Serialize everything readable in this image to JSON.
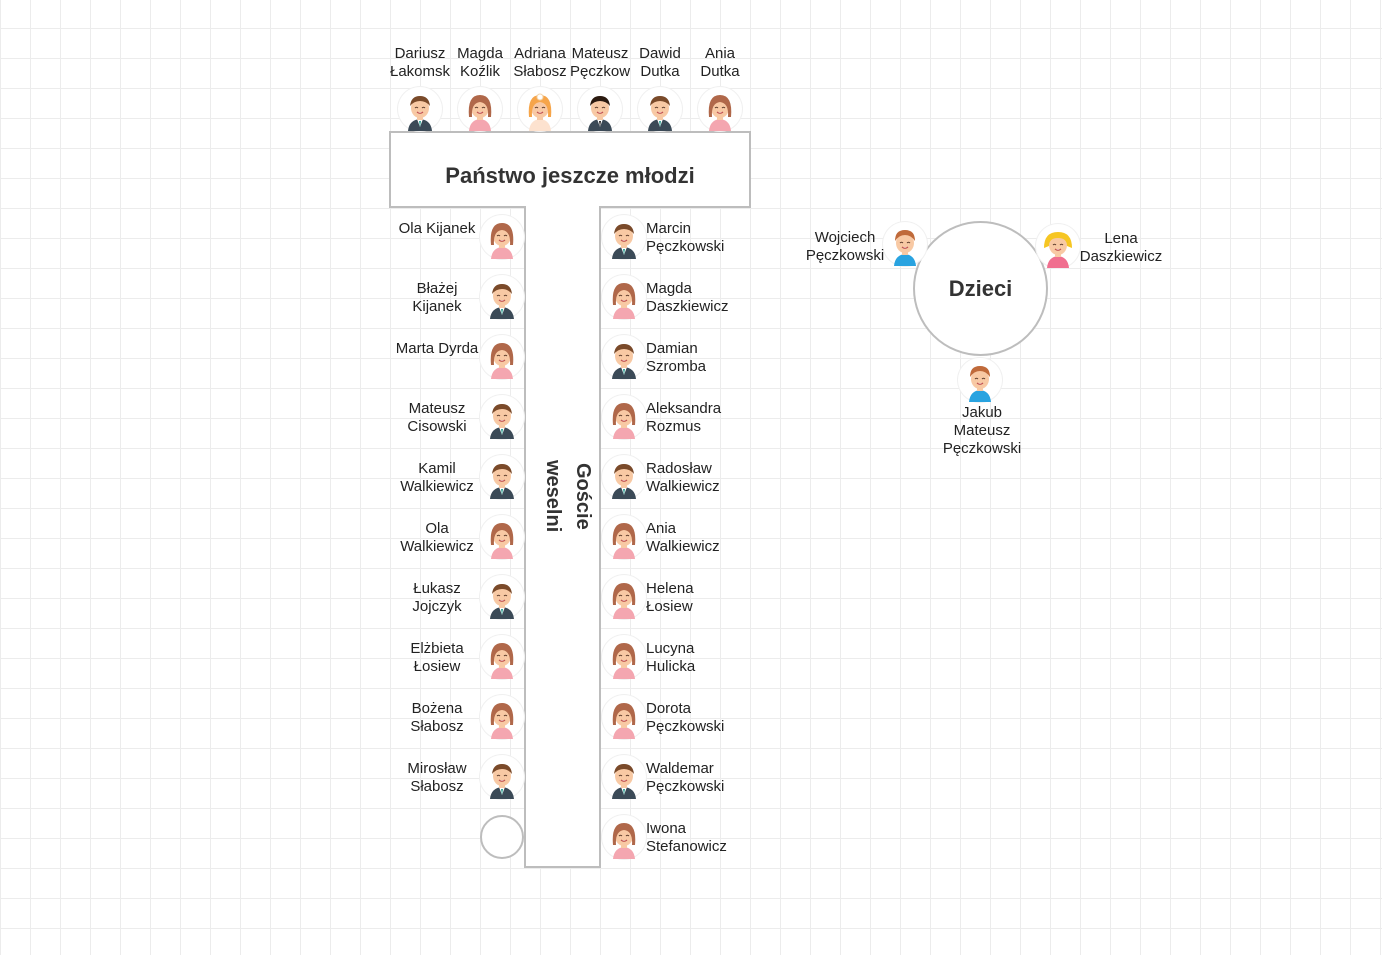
{
  "tables": {
    "head": {
      "label": "Państwo jeszcze młodzi"
    },
    "long": {
      "label": "Goście weselni"
    },
    "round": {
      "label": "Dzieci"
    }
  },
  "head_guests": [
    {
      "line1": "Dariusz",
      "line2": "Łakomski",
      "avatar": "man-suit"
    },
    {
      "line1": "Magda",
      "line2": "Koźlik",
      "avatar": "woman"
    },
    {
      "line1": "Adriana",
      "line2": "Słabosz",
      "avatar": "bride"
    },
    {
      "line1": "Mateusz",
      "line2": "Pęczkowski",
      "avatar": "groom"
    },
    {
      "line1": "Dawid",
      "line2": "Dutka",
      "avatar": "man-suit"
    },
    {
      "line1": "Ania",
      "line2": "Dutka",
      "avatar": "woman"
    }
  ],
  "left_guests": [
    {
      "line1": "Ola Kijanek",
      "line2": "",
      "avatar": "woman"
    },
    {
      "line1": "Błażej",
      "line2": "Kijanek",
      "avatar": "man-suit"
    },
    {
      "line1": "Marta Dyrda",
      "line2": "",
      "avatar": "woman"
    },
    {
      "line1": "Mateusz",
      "line2": "Cisowski",
      "avatar": "man-suit"
    },
    {
      "line1": "Kamil",
      "line2": "Walkiewicz",
      "avatar": "man-suit"
    },
    {
      "line1": "Ola",
      "line2": "Walkiewicz",
      "avatar": "woman"
    },
    {
      "line1": "Łukasz",
      "line2": "Jojczyk",
      "avatar": "man-suit"
    },
    {
      "line1": "Elżbieta",
      "line2": "Łosiew",
      "avatar": "woman"
    },
    {
      "line1": "Bożena",
      "line2": "Słabosz",
      "avatar": "woman"
    },
    {
      "line1": "Mirosław",
      "line2": "Słabosz",
      "avatar": "man-suit"
    }
  ],
  "right_guests": [
    {
      "line1": "Marcin",
      "line2": "Pęczkowski",
      "avatar": "man-suit"
    },
    {
      "line1": "Magda",
      "line2": "Daszkiewicz",
      "avatar": "woman"
    },
    {
      "line1": "Damian",
      "line2": "Szromba",
      "avatar": "man-suit"
    },
    {
      "line1": "Aleksandra",
      "line2": "Rozmus",
      "avatar": "woman"
    },
    {
      "line1": "Radosław",
      "line2": "Walkiewicz",
      "avatar": "man-suit"
    },
    {
      "line1": "Ania",
      "line2": "Walkiewicz",
      "avatar": "woman"
    },
    {
      "line1": "Helena",
      "line2": "Łosiew",
      "avatar": "woman"
    },
    {
      "line1": "Lucyna",
      "line2": "Hulicka",
      "avatar": "woman"
    },
    {
      "line1": "Dorota",
      "line2": "Pęczkowski",
      "avatar": "woman"
    },
    {
      "line1": "Waldemar",
      "line2": "Pęczkowski",
      "avatar": "man-suit"
    },
    {
      "line1": "Iwona",
      "line2": "Stefanowicz",
      "avatar": "woman"
    }
  ],
  "kids": [
    {
      "line1": "Wojciech",
      "line2": "Pęczkowski",
      "line3": "",
      "avatar": "boy"
    },
    {
      "line1": "Lena",
      "line2": "Daszkiewicz",
      "line3": "",
      "avatar": "girl"
    },
    {
      "line1": "Jakub",
      "line2": "Mateusz",
      "line3": "Pęczkowski",
      "avatar": "boy"
    }
  ],
  "colors": {
    "skin": "#f8c9a4",
    "hair_brown": "#7a4a2a",
    "hair_female": "#b0684a",
    "hair_blonde": "#f6c623",
    "hair_bride": "#f6a54a",
    "suit": "#3b4a57",
    "dress_pink": "#f4a6b0",
    "kid_blue": "#29a3e0",
    "kid_pink": "#f06f8f"
  }
}
